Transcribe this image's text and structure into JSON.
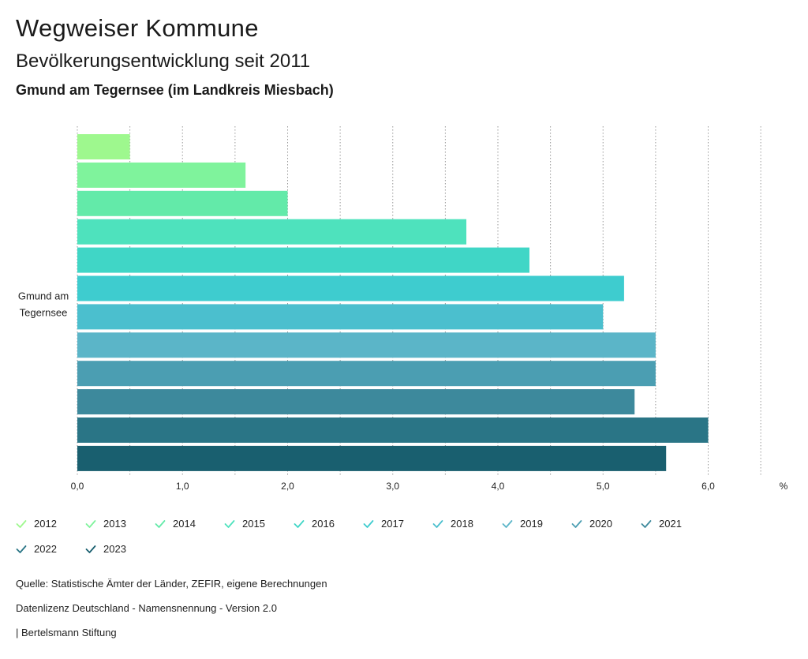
{
  "header": {
    "title": "Wegweiser Kommune",
    "subtitle": "Bevölkerungsentwicklung seit 2011",
    "region": "Gmund am Tegernsee (im Landkreis Miesbach)"
  },
  "chart_data": {
    "type": "bar",
    "orientation": "horizontal",
    "category_label_lines": [
      "Gmund am",
      "Tegernsee"
    ],
    "unit_label": "%",
    "xlim": [
      0,
      6.5
    ],
    "ticks": [
      0,
      1,
      2,
      3,
      4,
      5,
      6
    ],
    "tick_labels": [
      "0,0",
      "1,0",
      "2,0",
      "3,0",
      "4,0",
      "5,0",
      "6,0"
    ],
    "grid": "vertical-dotted",
    "legend_position": "bottom",
    "series": [
      {
        "name": "2012",
        "value": 0.5,
        "color": "#9ef88e"
      },
      {
        "name": "2013",
        "value": 1.6,
        "color": "#7ff39c"
      },
      {
        "name": "2014",
        "value": 2.0,
        "color": "#63eaa9"
      },
      {
        "name": "2015",
        "value": 3.7,
        "color": "#4ee2bd"
      },
      {
        "name": "2016",
        "value": 4.3,
        "color": "#40d6c6"
      },
      {
        "name": "2017",
        "value": 5.2,
        "color": "#3ecccf"
      },
      {
        "name": "2018",
        "value": 5.0,
        "color": "#4bbfce"
      },
      {
        "name": "2019",
        "value": 5.5,
        "color": "#5bb5c8"
      },
      {
        "name": "2020",
        "value": 5.5,
        "color": "#4b9eb2"
      },
      {
        "name": "2021",
        "value": 5.3,
        "color": "#3d899c"
      },
      {
        "name": "2022",
        "value": 6.0,
        "color": "#2a7586"
      },
      {
        "name": "2023",
        "value": 5.6,
        "color": "#195f6f"
      }
    ]
  },
  "footer": {
    "source": "Quelle: Statistische Ämter der Länder, ZEFIR, eigene Berechnungen",
    "license": "Datenlizenz Deutschland - Namensnennung - Version 2.0",
    "publisher": "| Bertelsmann Stiftung"
  }
}
